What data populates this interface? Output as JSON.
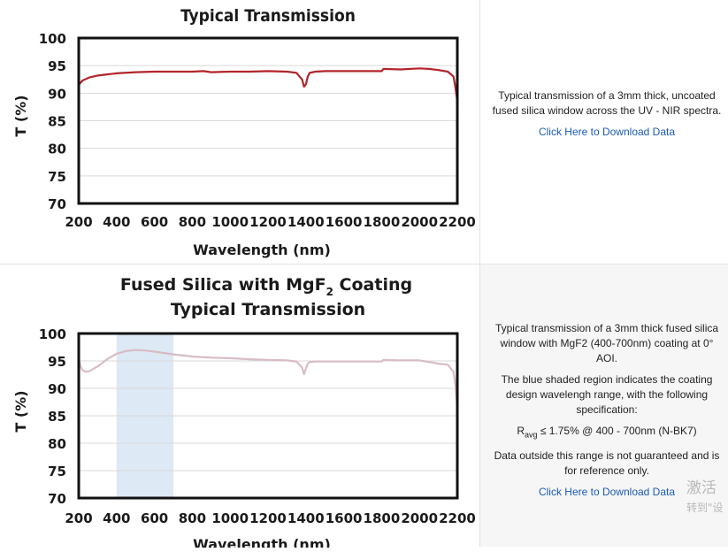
{
  "chart_data": [
    {
      "type": "line",
      "title": "Typical Transmission",
      "xlabel": "Wavelength (nm)",
      "ylabel": "T (%)",
      "xlim": [
        200,
        2200
      ],
      "ylim": [
        70,
        100
      ],
      "xticks": [
        "200",
        "400",
        "600",
        "800",
        "1000",
        "1200",
        "1400",
        "1600",
        "1800",
        "2000",
        "2200"
      ],
      "yticks": [
        "100",
        "95",
        "90",
        "85",
        "80",
        "75",
        "70"
      ],
      "grid": "horizontal",
      "series": [
        {
          "color": "#b3242b",
          "x": [
            200,
            220,
            260,
            300,
            350,
            400,
            500,
            600,
            700,
            800,
            860,
            900,
            1000,
            1100,
            1200,
            1300,
            1350,
            1380,
            1390,
            1400,
            1410,
            1420,
            1450,
            1500,
            1600,
            1700,
            1800,
            1810,
            1900,
            2000,
            2050,
            2100,
            2150,
            2180,
            2190,
            2200
          ],
          "y": [
            91.5,
            92.3,
            92.9,
            93.2,
            93.4,
            93.6,
            93.8,
            93.9,
            93.9,
            93.9,
            94.0,
            93.8,
            93.9,
            93.9,
            94.0,
            93.9,
            93.7,
            92.5,
            91.2,
            91.6,
            93.0,
            93.7,
            93.9,
            94.0,
            94.0,
            94.0,
            94.0,
            94.4,
            94.3,
            94.5,
            94.4,
            94.2,
            93.9,
            93.0,
            91.0,
            88.5
          ]
        }
      ]
    },
    {
      "type": "line",
      "title": "Fused Silica with MgF",
      "title_sub": "2",
      "title_rest": " Coating",
      "title2": "Typical Transmission",
      "xlabel": "Wavelength (nm)",
      "ylabel": "T (%)",
      "xlim": [
        200,
        2200
      ],
      "ylim": [
        70,
        100
      ],
      "xticks": [
        "200",
        "400",
        "600",
        "800",
        "1000",
        "1200",
        "1400",
        "1600",
        "1800",
        "2000",
        "2200"
      ],
      "yticks": [
        "100",
        "95",
        "90",
        "85",
        "80",
        "75",
        "70"
      ],
      "grid": "horizontal",
      "shaded_region": [
        400,
        700
      ],
      "shaded_color": "#dde9f5",
      "series": [
        {
          "color": "#d8bcc5",
          "x": [
            200,
            210,
            220,
            240,
            260,
            300,
            350,
            400,
            450,
            500,
            550,
            600,
            700,
            800,
            900,
            1000,
            1100,
            1200,
            1300,
            1350,
            1380,
            1390,
            1400,
            1410,
            1420,
            1450,
            1500,
            1600,
            1700,
            1800,
            1810,
            1900,
            2000,
            2050,
            2100,
            2150,
            2180,
            2190,
            2200
          ],
          "y": [
            95.3,
            94.0,
            93.3,
            93.0,
            93.2,
            94.0,
            95.3,
            96.3,
            96.8,
            97.0,
            96.9,
            96.7,
            96.2,
            95.8,
            95.6,
            95.5,
            95.3,
            95.2,
            95.1,
            94.9,
            93.8,
            92.6,
            93.6,
            94.5,
            94.8,
            94.9,
            94.9,
            94.9,
            94.9,
            94.9,
            95.2,
            95.1,
            95.1,
            94.8,
            94.5,
            94.3,
            93.0,
            90.5,
            86.5
          ]
        }
      ]
    }
  ],
  "panel1": {
    "description": "Typical transmission of a 3mm thick, uncoated fused silica window across the UV - NIR spectra.",
    "link": "Click Here to Download Data"
  },
  "panel2": {
    "p1": "Typical transmission of a 3mm thick fused silica window with MgF2 (400-700nm) coating at 0° AOI.",
    "p2": "The blue shaded region indicates the coating design wavelengh range, with the following specification:",
    "spec_r": "R",
    "spec_sub": "avg",
    "spec_rest": " ≤ 1.75% @ 400 - 700nm (N-BK7)",
    "p3": "Data outside this range is not guaranteed and is for reference only.",
    "link": "Click Here to Download Data"
  },
  "watermark": {
    "line1": "激活",
    "line2": "转到\"设"
  }
}
